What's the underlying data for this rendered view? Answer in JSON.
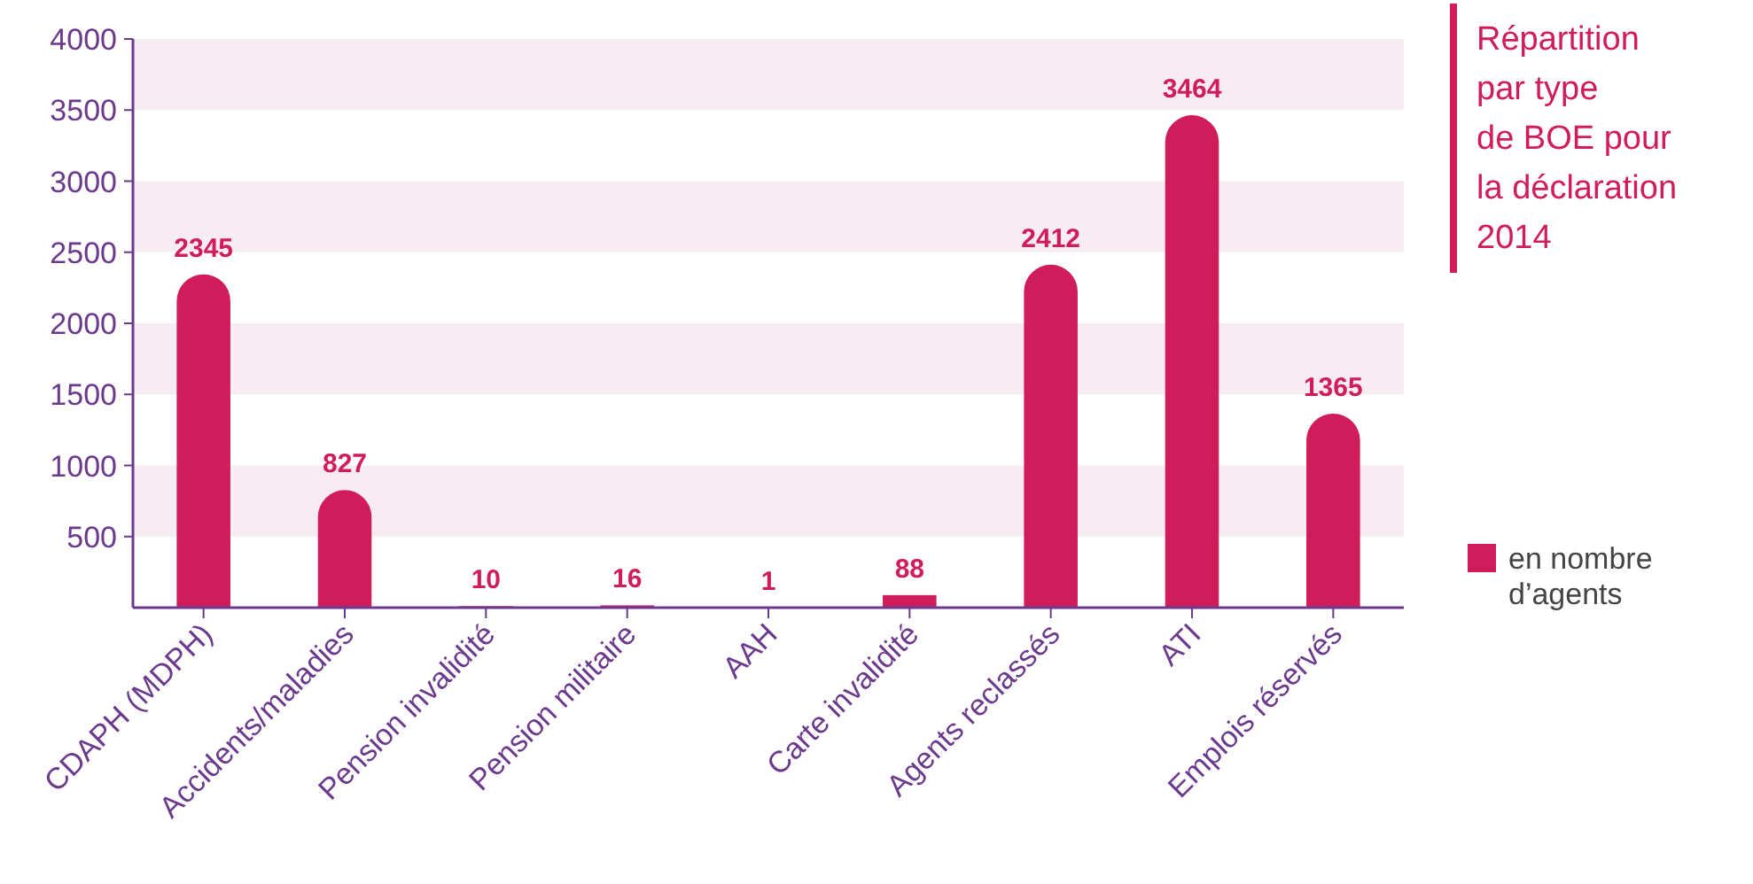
{
  "chart_data": {
    "type": "bar",
    "title": "Répartition\npar type\nde BOE pour\nla déclaration\n2014",
    "categories": [
      "CDAPH (MDPH)",
      "Accidents/maladies",
      "Pension invalidité",
      "Pension militaire",
      "AAH",
      "Carte invalidité",
      "Agents reclassés",
      "ATI",
      "Emplois réservés"
    ],
    "series": [
      {
        "name": "en nombre d’agents",
        "color": "#d01c5b",
        "values": [
          2345,
          827,
          10,
          16,
          1,
          88,
          2412,
          3464,
          1365
        ]
      }
    ],
    "ylim": [
      0,
      4000
    ],
    "yticks": [
      500,
      1000,
      1500,
      2000,
      2500,
      3000,
      3500,
      4000
    ],
    "legend": "right",
    "data_labels": true
  }
}
